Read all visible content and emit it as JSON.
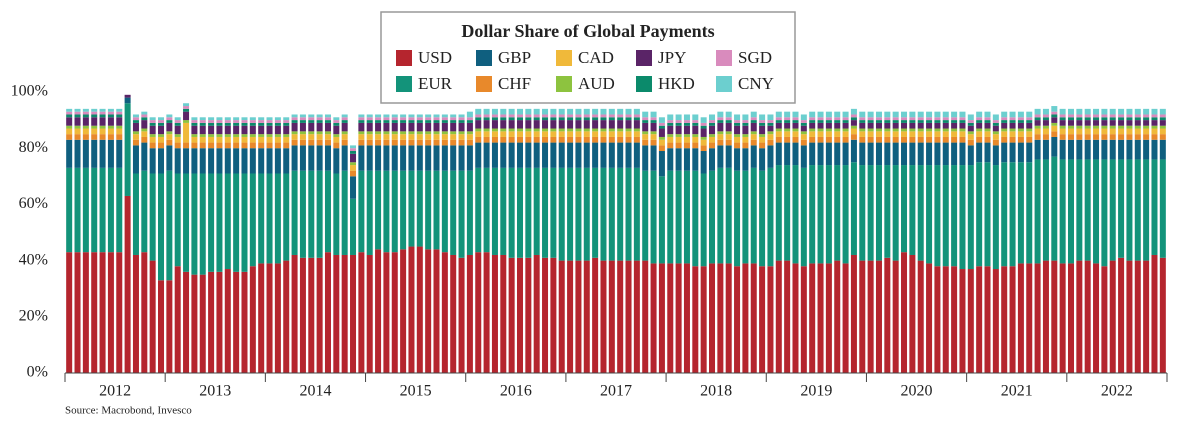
{
  "chart_data": {
    "type": "stacked_bar",
    "title": "Dollar Share of Global Payments",
    "source": "Source: Macrobond, Invesco",
    "x_labels": [
      "2012",
      "2013",
      "2014",
      "2015",
      "2016",
      "2017",
      "2018",
      "2019",
      "2020",
      "2021",
      "2022"
    ],
    "ylim": [
      0,
      100
    ],
    "yticks": [
      {
        "value": 0,
        "label": "0%"
      },
      {
        "value": 20,
        "label": "20%"
      },
      {
        "value": 40,
        "label": "40%"
      },
      {
        "value": 60,
        "label": "60%"
      },
      {
        "value": 80,
        "label": "80%"
      },
      {
        "value": 100,
        "label": "100%"
      }
    ],
    "series": [
      {
        "name": "USD",
        "color": "#b5252e",
        "values": [
          43,
          43,
          43,
          43,
          43,
          43,
          43,
          63,
          42,
          43,
          40,
          33,
          33,
          38,
          36,
          35,
          35,
          36,
          36,
          37,
          36,
          36,
          38,
          39,
          39,
          39,
          40,
          42,
          41,
          41,
          41,
          43,
          42,
          42,
          42,
          43,
          42,
          44,
          43,
          43,
          44,
          45,
          45,
          44,
          44,
          43,
          42,
          41,
          42,
          43,
          43,
          42,
          42,
          41,
          41,
          41,
          42,
          41,
          41,
          40,
          40,
          40,
          40,
          41,
          40,
          40,
          40,
          40,
          40,
          40,
          39,
          39,
          39,
          39,
          39,
          38,
          38,
          39,
          39,
          39,
          38,
          39,
          39,
          38,
          38,
          40,
          40,
          39,
          38,
          39,
          39,
          39,
          40,
          39,
          42,
          40,
          40,
          40,
          41,
          40,
          43,
          42,
          40,
          39,
          38,
          38,
          38,
          37,
          37,
          38,
          38,
          37,
          38,
          38,
          39,
          39,
          39,
          40,
          40,
          39,
          39,
          40,
          40,
          39,
          38,
          40,
          41,
          40,
          40,
          40,
          42,
          41
        ]
      },
      {
        "name": "EUR",
        "color": "#13937a",
        "values": [
          30,
          30,
          30,
          30,
          30,
          30,
          30,
          33,
          29,
          29,
          31,
          38,
          39,
          33,
          35,
          36,
          36,
          35,
          35,
          34,
          35,
          35,
          33,
          32,
          32,
          32,
          31,
          30,
          31,
          31,
          31,
          29,
          29,
          30,
          20,
          29,
          30,
          28,
          29,
          29,
          28,
          27,
          27,
          28,
          28,
          29,
          30,
          31,
          30,
          30,
          30,
          31,
          31,
          32,
          32,
          32,
          31,
          32,
          32,
          33,
          33,
          33,
          33,
          32,
          33,
          33,
          33,
          33,
          33,
          32,
          33,
          31,
          33,
          33,
          33,
          34,
          33,
          33,
          34,
          34,
          34,
          33,
          34,
          34,
          35,
          34,
          34,
          35,
          35,
          35,
          35,
          35,
          34,
          35,
          33,
          34,
          34,
          34,
          33,
          34,
          31,
          32,
          34,
          35,
          36,
          36,
          36,
          37,
          37,
          37,
          37,
          37,
          37,
          37,
          36,
          36,
          37,
          36,
          37,
          37,
          37,
          36,
          36,
          37,
          38,
          36,
          35,
          36,
          36,
          36,
          34,
          35
        ]
      },
      {
        "name": "GBP",
        "color": "#0f5f7f",
        "values": [
          10,
          10,
          10,
          10,
          10,
          10,
          10,
          2,
          10,
          10,
          9,
          9,
          9,
          9,
          9,
          9,
          9,
          9,
          9,
          9,
          9,
          9,
          9,
          9,
          9,
          9,
          9,
          9,
          9,
          9,
          9,
          9,
          9,
          9,
          8,
          9,
          9,
          9,
          9,
          9,
          9,
          9,
          9,
          9,
          9,
          9,
          9,
          9,
          9,
          9,
          9,
          9,
          9,
          9,
          9,
          9,
          9,
          9,
          9,
          9,
          9,
          9,
          9,
          9,
          9,
          9,
          9,
          9,
          9,
          9,
          9,
          9,
          8,
          8,
          8,
          8,
          8,
          8,
          8,
          8,
          8,
          8,
          8,
          8,
          8,
          8,
          8,
          8,
          8,
          8,
          8,
          8,
          8,
          8,
          8,
          8,
          8,
          8,
          8,
          8,
          8,
          8,
          8,
          8,
          8,
          8,
          8,
          8,
          7,
          7,
          7,
          7,
          7,
          7,
          7,
          7,
          7,
          7,
          7,
          7,
          7,
          7,
          7,
          7,
          7,
          7,
          7,
          7,
          7,
          7,
          7,
          7
        ]
      },
      {
        "name": "CHF",
        "color": "#e8892b",
        "values": [
          2,
          2,
          2,
          2,
          2,
          2,
          2,
          0,
          2,
          2,
          2,
          2,
          2,
          2,
          2,
          2,
          2,
          2,
          2,
          2,
          2,
          2,
          2,
          2,
          2,
          2,
          2,
          2,
          2,
          2,
          2,
          2,
          2,
          2,
          2,
          2,
          2,
          2,
          2,
          2,
          2,
          2,
          2,
          2,
          2,
          2,
          2,
          2,
          2,
          2,
          2,
          2,
          2,
          2,
          2,
          2,
          2,
          2,
          2,
          2,
          2,
          2,
          2,
          2,
          2,
          2,
          2,
          2,
          2,
          2,
          2,
          2,
          2,
          2,
          2,
          2,
          2,
          2,
          2,
          2,
          2,
          2,
          2,
          2,
          2,
          2,
          2,
          2,
          2,
          2,
          2,
          2,
          2,
          2,
          2,
          2,
          2,
          2,
          2,
          2,
          2,
          2,
          2,
          2,
          2,
          2,
          2,
          2,
          2,
          2,
          2,
          2,
          2,
          2,
          2,
          2,
          2,
          2,
          2,
          2,
          2,
          2,
          2,
          2,
          2,
          2,
          2,
          2,
          2,
          2,
          2,
          2
        ]
      },
      {
        "name": "CAD",
        "color": "#f0b93a",
        "values": [
          2,
          2,
          2,
          2,
          2,
          2,
          2,
          0,
          2,
          2,
          2,
          2,
          2,
          2,
          7,
          2,
          2,
          2,
          2,
          2,
          2,
          2,
          2,
          2,
          2,
          2,
          2,
          2,
          2,
          2,
          2,
          2,
          2,
          2,
          2,
          2,
          2,
          2,
          2,
          2,
          2,
          2,
          2,
          2,
          2,
          2,
          2,
          2,
          2,
          2,
          2,
          2,
          2,
          2,
          2,
          2,
          2,
          2,
          2,
          2,
          2,
          2,
          2,
          2,
          2,
          2,
          2,
          2,
          2,
          2,
          2,
          2,
          2,
          2,
          2,
          2,
          2,
          2,
          2,
          2,
          2,
          2,
          2,
          2,
          2,
          2,
          2,
          2,
          2,
          2,
          2,
          2,
          2,
          2,
          2,
          2,
          2,
          2,
          2,
          2,
          2,
          2,
          2,
          2,
          2,
          2,
          2,
          2,
          2,
          2,
          2,
          2,
          2,
          2,
          2,
          2,
          2,
          2,
          2,
          2,
          2,
          2,
          2,
          2,
          2,
          2,
          2,
          2,
          2,
          2,
          2,
          2
        ]
      },
      {
        "name": "AUD",
        "color": "#8dc33f",
        "values": [
          1,
          1,
          1,
          1,
          1,
          1,
          1,
          0,
          1,
          1,
          1,
          1,
          1,
          1,
          1,
          1,
          1,
          1,
          1,
          1,
          1,
          1,
          1,
          1,
          1,
          1,
          1,
          1,
          1,
          1,
          1,
          1,
          1,
          1,
          1,
          1,
          1,
          1,
          1,
          1,
          1,
          1,
          1,
          1,
          1,
          1,
          1,
          1,
          1,
          1,
          1,
          1,
          1,
          1,
          1,
          1,
          1,
          1,
          1,
          1,
          1,
          1,
          1,
          1,
          1,
          1,
          1,
          1,
          1,
          1,
          1,
          1,
          1,
          1,
          1,
          1,
          1,
          1,
          1,
          1,
          1,
          1,
          1,
          1,
          1,
          1,
          1,
          1,
          1,
          1,
          1,
          1,
          1,
          1,
          1,
          1,
          1,
          1,
          1,
          1,
          1,
          1,
          1,
          1,
          1,
          1,
          1,
          1,
          1,
          1,
          1,
          1,
          1,
          1,
          1,
          1,
          1,
          1,
          1,
          1,
          1,
          1,
          1,
          1,
          1,
          1,
          1,
          1,
          1,
          1,
          1,
          1
        ]
      },
      {
        "name": "JPY",
        "color": "#5a2467",
        "values": [
          3,
          3,
          3,
          3,
          3,
          3,
          3,
          1,
          3,
          3,
          3,
          3,
          3,
          3,
          3,
          3,
          3,
          3,
          3,
          3,
          3,
          3,
          3,
          3,
          3,
          3,
          3,
          3,
          3,
          3,
          3,
          3,
          3,
          3,
          3,
          3,
          3,
          3,
          3,
          3,
          3,
          3,
          3,
          3,
          3,
          3,
          3,
          3,
          3,
          3,
          3,
          3,
          3,
          3,
          3,
          3,
          3,
          3,
          3,
          3,
          3,
          3,
          3,
          3,
          3,
          3,
          3,
          3,
          3,
          3,
          3,
          3,
          3,
          3,
          3,
          3,
          3,
          3,
          3,
          3,
          3,
          3,
          3,
          3,
          2,
          2,
          2,
          2,
          2,
          2,
          2,
          2,
          2,
          2,
          2,
          2,
          2,
          2,
          2,
          2,
          2,
          2,
          2,
          2,
          2,
          2,
          2,
          2,
          2,
          2,
          2,
          2,
          2,
          2,
          2,
          2,
          2,
          2,
          2,
          2,
          2,
          2,
          2,
          2,
          2,
          2,
          2,
          2,
          2,
          2,
          2,
          2
        ]
      },
      {
        "name": "HKD",
        "color": "#0b8a6b",
        "values": [
          1,
          1,
          1,
          1,
          1,
          1,
          1,
          0,
          1,
          1,
          1,
          1,
          1,
          1,
          1,
          1,
          1,
          1,
          1,
          1,
          1,
          1,
          1,
          1,
          1,
          1,
          1,
          1,
          1,
          1,
          1,
          1,
          1,
          1,
          1,
          1,
          1,
          1,
          1,
          1,
          1,
          1,
          1,
          1,
          1,
          1,
          1,
          1,
          1,
          1,
          1,
          1,
          1,
          1,
          1,
          1,
          1,
          1,
          1,
          1,
          1,
          1,
          1,
          1,
          1,
          1,
          1,
          1,
          1,
          1,
          1,
          1,
          1,
          1,
          1,
          1,
          1,
          1,
          1,
          1,
          1,
          1,
          1,
          1,
          1,
          1,
          1,
          1,
          1,
          1,
          1,
          1,
          1,
          1,
          1,
          1,
          1,
          1,
          1,
          1,
          1,
          1,
          1,
          1,
          1,
          1,
          1,
          1,
          1,
          1,
          1,
          1,
          1,
          1,
          1,
          1,
          1,
          1,
          1,
          1,
          1,
          1,
          1,
          1,
          1,
          1,
          1,
          1,
          1,
          1,
          1,
          1
        ]
      },
      {
        "name": "SGD",
        "color": "#d98bbd",
        "values": [
          1,
          1,
          1,
          1,
          1,
          1,
          1,
          0,
          1,
          1,
          1,
          1,
          1,
          1,
          1,
          1,
          1,
          1,
          1,
          1,
          1,
          1,
          1,
          1,
          1,
          1,
          1,
          1,
          1,
          1,
          1,
          1,
          1,
          1,
          1,
          1,
          1,
          1,
          1,
          1,
          1,
          1,
          1,
          1,
          1,
          1,
          1,
          1,
          1,
          1,
          1,
          1,
          1,
          1,
          1,
          1,
          1,
          1,
          1,
          1,
          1,
          1,
          1,
          1,
          1,
          1,
          1,
          1,
          1,
          1,
          1,
          1,
          1,
          1,
          1,
          1,
          1,
          1,
          1,
          1,
          1,
          1,
          1,
          1,
          1,
          1,
          1,
          1,
          1,
          1,
          1,
          1,
          1,
          1,
          1,
          1,
          1,
          1,
          1,
          1,
          1,
          1,
          1,
          1,
          1,
          1,
          1,
          1,
          1,
          1,
          1,
          1,
          1,
          1,
          1,
          1,
          1,
          1,
          1,
          1,
          1,
          1,
          1,
          1,
          1,
          1,
          1,
          1,
          1,
          1,
          1,
          1
        ]
      },
      {
        "name": "CNY",
        "color": "#6ccfcf",
        "values": [
          1,
          1,
          1,
          1,
          1,
          1,
          1,
          0,
          1,
          1,
          1,
          1,
          1,
          1,
          1,
          1,
          1,
          1,
          1,
          1,
          1,
          1,
          1,
          1,
          1,
          1,
          1,
          1,
          1,
          1,
          1,
          1,
          1,
          1,
          1,
          1,
          1,
          1,
          1,
          1,
          1,
          1,
          1,
          1,
          1,
          1,
          1,
          1,
          2,
          2,
          2,
          2,
          2,
          2,
          2,
          2,
          2,
          2,
          2,
          2,
          2,
          2,
          2,
          2,
          2,
          2,
          2,
          2,
          2,
          2,
          2,
          2,
          2,
          2,
          2,
          2,
          2,
          2,
          2,
          2,
          2,
          2,
          2,
          2,
          2,
          2,
          2,
          2,
          2,
          2,
          2,
          2,
          2,
          2,
          2,
          2,
          2,
          2,
          2,
          2,
          2,
          2,
          2,
          2,
          2,
          2,
          2,
          2,
          2,
          2,
          2,
          2,
          2,
          2,
          2,
          2,
          2,
          2,
          2,
          2,
          2,
          2,
          2,
          2,
          2,
          2,
          2,
          2,
          2,
          2,
          2,
          2
        ]
      }
    ]
  }
}
